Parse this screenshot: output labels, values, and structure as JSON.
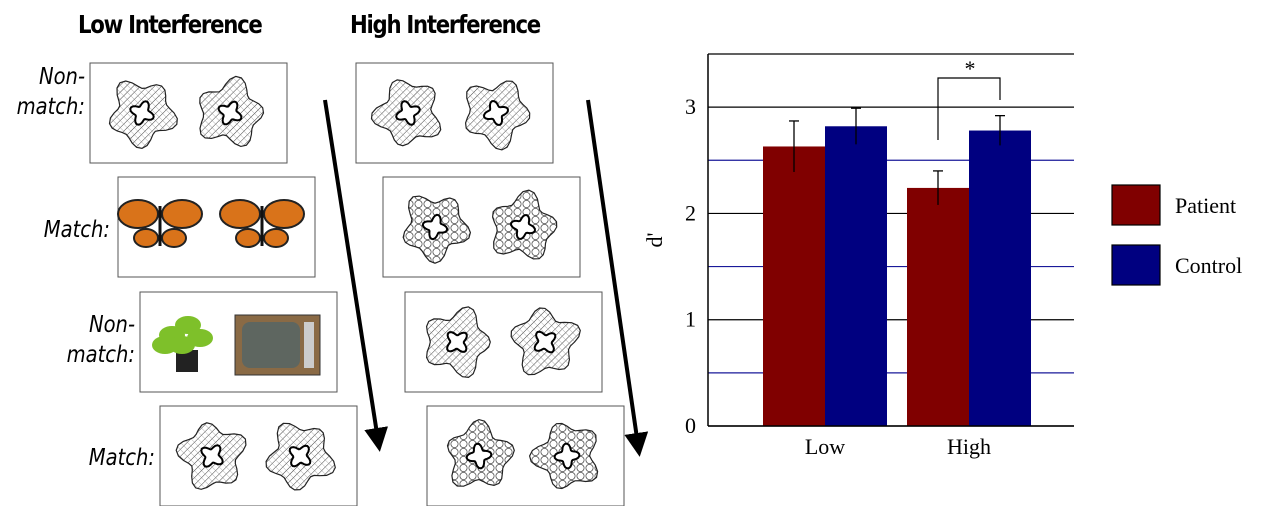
{
  "diagram": {
    "columns": [
      "Low Interference",
      "High Interference"
    ],
    "rows": [
      "Non-\nmatch:",
      "Match:",
      "Non-\nmatch:",
      "Match:"
    ]
  },
  "chart_data": {
    "type": "bar",
    "ylabel": "d'",
    "categories": [
      "Low",
      "High"
    ],
    "series": [
      {
        "name": "Patient",
        "color": "#800000",
        "values": [
          2.63,
          2.24
        ],
        "errors": [
          0.24,
          0.16
        ]
      },
      {
        "name": "Control",
        "color": "#000080",
        "values": [
          2.82,
          2.78
        ],
        "errors": [
          0.17,
          0.14
        ]
      }
    ],
    "ylim": [
      0,
      3.5
    ],
    "yticks": [
      0,
      1,
      2,
      3
    ],
    "minor_yticks": [
      0.5,
      1.5,
      2.5,
      3.5
    ],
    "grid": true,
    "legend": "right",
    "annotation": "*"
  }
}
